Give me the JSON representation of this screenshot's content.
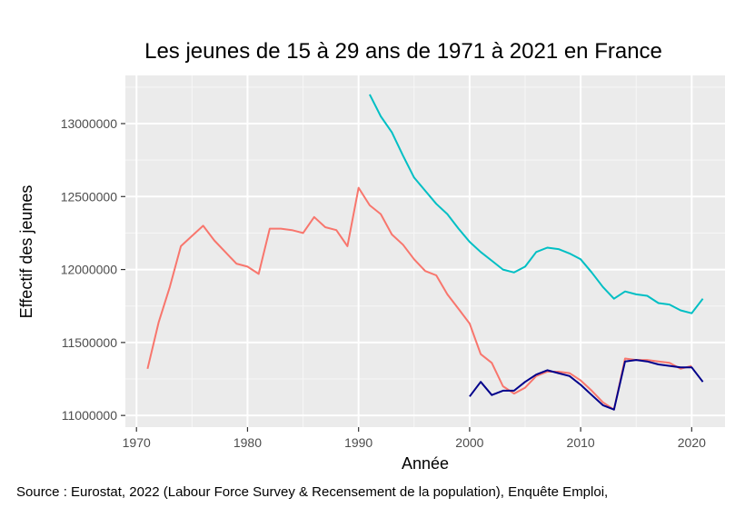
{
  "chart_data": {
    "type": "line",
    "title": "Les jeunes de 15 à 29 ans de 1971 à 2021 en France",
    "xlabel": "Année",
    "ylabel": "Effectif des jeunes",
    "caption": "Source : Eurostat, 2022 (Labour Force Survey & Recensement de la population), Enquête Emploi,",
    "xlim": [
      1969,
      2023
    ],
    "ylim": [
      10920000,
      13330000
    ],
    "x_ticks": [
      1970,
      1980,
      1990,
      2000,
      2010,
      2020
    ],
    "y_ticks": [
      11000000,
      11500000,
      12000000,
      12500000,
      13000000
    ],
    "grid": true,
    "legend": "none",
    "series": [
      {
        "color": "#f8766d",
        "x": [
          1971,
          1972,
          1973,
          1974,
          1975,
          1976,
          1977,
          1978,
          1979,
          1980,
          1981,
          1982,
          1983,
          1984,
          1985,
          1986,
          1987,
          1988,
          1989,
          1990,
          1991,
          1992,
          1993,
          1994,
          1995,
          1996,
          1997,
          1998,
          1999,
          2000,
          2001,
          2002,
          2003,
          2004,
          2005,
          2006,
          2007,
          2008,
          2009,
          2010,
          2011,
          2012,
          2013,
          2014,
          2015,
          2016,
          2017,
          2018,
          2019,
          2020
        ],
        "y": [
          11320000,
          11640000,
          11880000,
          12160000,
          12230000,
          12300000,
          12200000,
          12120000,
          12040000,
          12020000,
          11970000,
          12280000,
          12280000,
          12270000,
          12250000,
          12360000,
          12290000,
          12270000,
          12160000,
          12560000,
          12440000,
          12380000,
          12240000,
          12170000,
          12070000,
          11990000,
          11960000,
          11830000,
          11730000,
          11630000,
          11420000,
          11360000,
          11200000,
          11150000,
          11190000,
          11270000,
          11300000,
          11300000,
          11290000,
          11240000,
          11170000,
          11090000,
          11040000,
          11390000,
          11380000,
          11380000,
          11370000,
          11360000,
          11320000,
          11340000
        ]
      },
      {
        "color": "#00bfc4",
        "x": [
          1991,
          1992,
          1993,
          1994,
          1995,
          1996,
          1997,
          1998,
          1999,
          2000,
          2001,
          2002,
          2003,
          2004,
          2005,
          2006,
          2007,
          2008,
          2009,
          2010,
          2011,
          2012,
          2013,
          2014,
          2015,
          2016,
          2017,
          2018,
          2019,
          2020,
          2021
        ],
        "y": [
          13200000,
          13050000,
          12940000,
          12780000,
          12630000,
          12540000,
          12450000,
          12380000,
          12280000,
          12190000,
          12120000,
          12060000,
          12000000,
          11980000,
          12020000,
          12120000,
          12150000,
          12140000,
          12110000,
          12070000,
          11980000,
          11880000,
          11800000,
          11850000,
          11830000,
          11820000,
          11770000,
          11760000,
          11720000,
          11700000,
          11800000
        ]
      },
      {
        "color": "#00008b",
        "x": [
          2000,
          2001,
          2002,
          2003,
          2004,
          2005,
          2006,
          2007,
          2008,
          2009,
          2010,
          2011,
          2012,
          2013,
          2014,
          2015,
          2016,
          2017,
          2018,
          2019,
          2020,
          2021
        ],
        "y": [
          11130000,
          11230000,
          11140000,
          11170000,
          11170000,
          11230000,
          11280000,
          11310000,
          11290000,
          11270000,
          11210000,
          11140000,
          11070000,
          11040000,
          11370000,
          11380000,
          11370000,
          11350000,
          11340000,
          11330000,
          11330000,
          11230000
        ]
      }
    ]
  }
}
